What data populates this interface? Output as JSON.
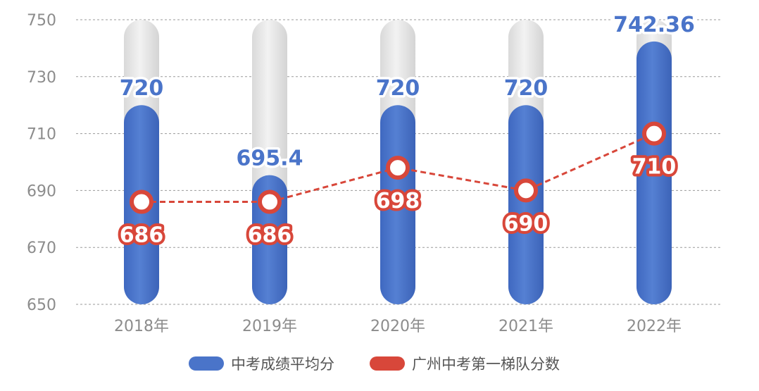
{
  "chart_data": {
    "type": "bar",
    "categories": [
      "2018年",
      "2019年",
      "2020年",
      "2021年",
      "2022年"
    ],
    "ylim": [
      650,
      750
    ],
    "yticks": [
      650,
      670,
      690,
      710,
      730,
      750
    ],
    "grid": true,
    "legend_position": "bottom",
    "series": [
      {
        "name": "中考成绩平均分",
        "type": "bar",
        "values": [
          720,
          695.4,
          720,
          720,
          742.36
        ],
        "labels": [
          "720",
          "695.4",
          "720",
          "720",
          "742.36"
        ],
        "color": "#4a74c9"
      },
      {
        "name": "广州中考第一梯队分数",
        "type": "line",
        "values": [
          686,
          686,
          698,
          690,
          710
        ],
        "labels": [
          "686",
          "686",
          "698",
          "690",
          "710"
        ],
        "color": "#d8473a"
      }
    ]
  }
}
